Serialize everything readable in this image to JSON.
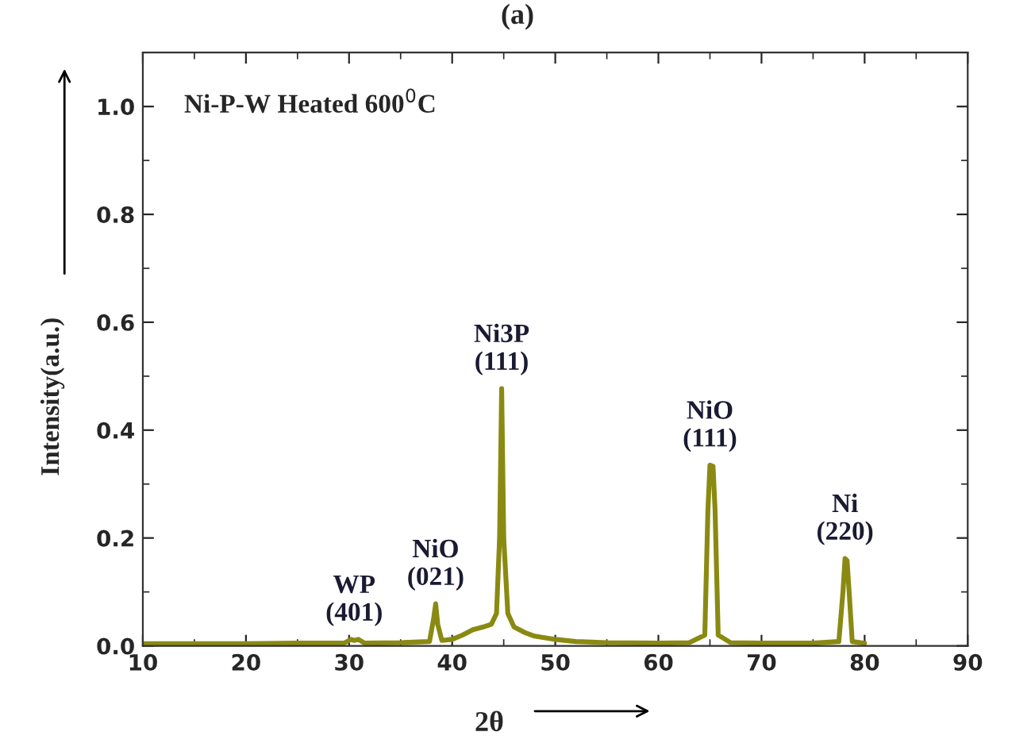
{
  "chart_data": {
    "type": "line",
    "title": "(a)",
    "xlabel": "2θ",
    "ylabel": "Intensity(a.u.)",
    "series": [
      {
        "color": "#8a8a12",
        "x": [
          10,
          15,
          20,
          25,
          29.5,
          30.2,
          30.5,
          30.9,
          31.5,
          35,
          37.8,
          38.2,
          38.4,
          38.6,
          39.0,
          40,
          41,
          42,
          43,
          43.8,
          44.3,
          44.6,
          44.8,
          45.0,
          45.4,
          46,
          47,
          48,
          50,
          52,
          55,
          60,
          63,
          64.5,
          64.8,
          65.0,
          65.3,
          65.5,
          65.8,
          67,
          70,
          75,
          77.5,
          77.9,
          78.1,
          78.3,
          78.5,
          78.8,
          80
        ],
        "values": [
          0.004,
          0.004,
          0.004,
          0.005,
          0.005,
          0.012,
          0.01,
          0.012,
          0.005,
          0.006,
          0.008,
          0.05,
          0.078,
          0.04,
          0.01,
          0.012,
          0.02,
          0.03,
          0.035,
          0.04,
          0.06,
          0.2,
          0.477,
          0.2,
          0.06,
          0.035,
          0.025,
          0.018,
          0.012,
          0.008,
          0.006,
          0.005,
          0.006,
          0.02,
          0.25,
          0.335,
          0.333,
          0.25,
          0.02,
          0.006,
          0.005,
          0.005,
          0.008,
          0.1,
          0.162,
          0.158,
          0.1,
          0.008,
          0.005
        ]
      }
    ],
    "xlim": [
      10,
      90
    ],
    "xticks": [
      10,
      20,
      30,
      40,
      50,
      60,
      70,
      80,
      90
    ],
    "ylim": [
      0,
      1.1
    ],
    "yticks": [
      {
        "value": 0,
        "label": "0.0"
      },
      {
        "value": 0.2,
        "label": "0.2"
      },
      {
        "value": 0.4,
        "label": "0.4"
      },
      {
        "value": 0.6,
        "label": "0.6"
      },
      {
        "value": 0.8,
        "label": "0.8"
      },
      {
        "value": 1.0,
        "label": "1.0"
      }
    ],
    "grid": false,
    "legend": false,
    "annotations": [
      "Ni-P-W Heated 600$^{0}$C",
      {
        "text": "WP\n(401)",
        "x": 30.5,
        "y": 0.012
      },
      {
        "text": "NiO\n(021)",
        "x": 38.4,
        "y": 0.078
      },
      {
        "text": "Ni3P\n(111)",
        "x": 44.8,
        "y": 0.477
      },
      {
        "text": "NiO\n(111)",
        "x": 65.0,
        "y": 0.335
      },
      {
        "text": "Ni\n(220)",
        "x": 78.1,
        "y": 0.162
      }
    ]
  }
}
